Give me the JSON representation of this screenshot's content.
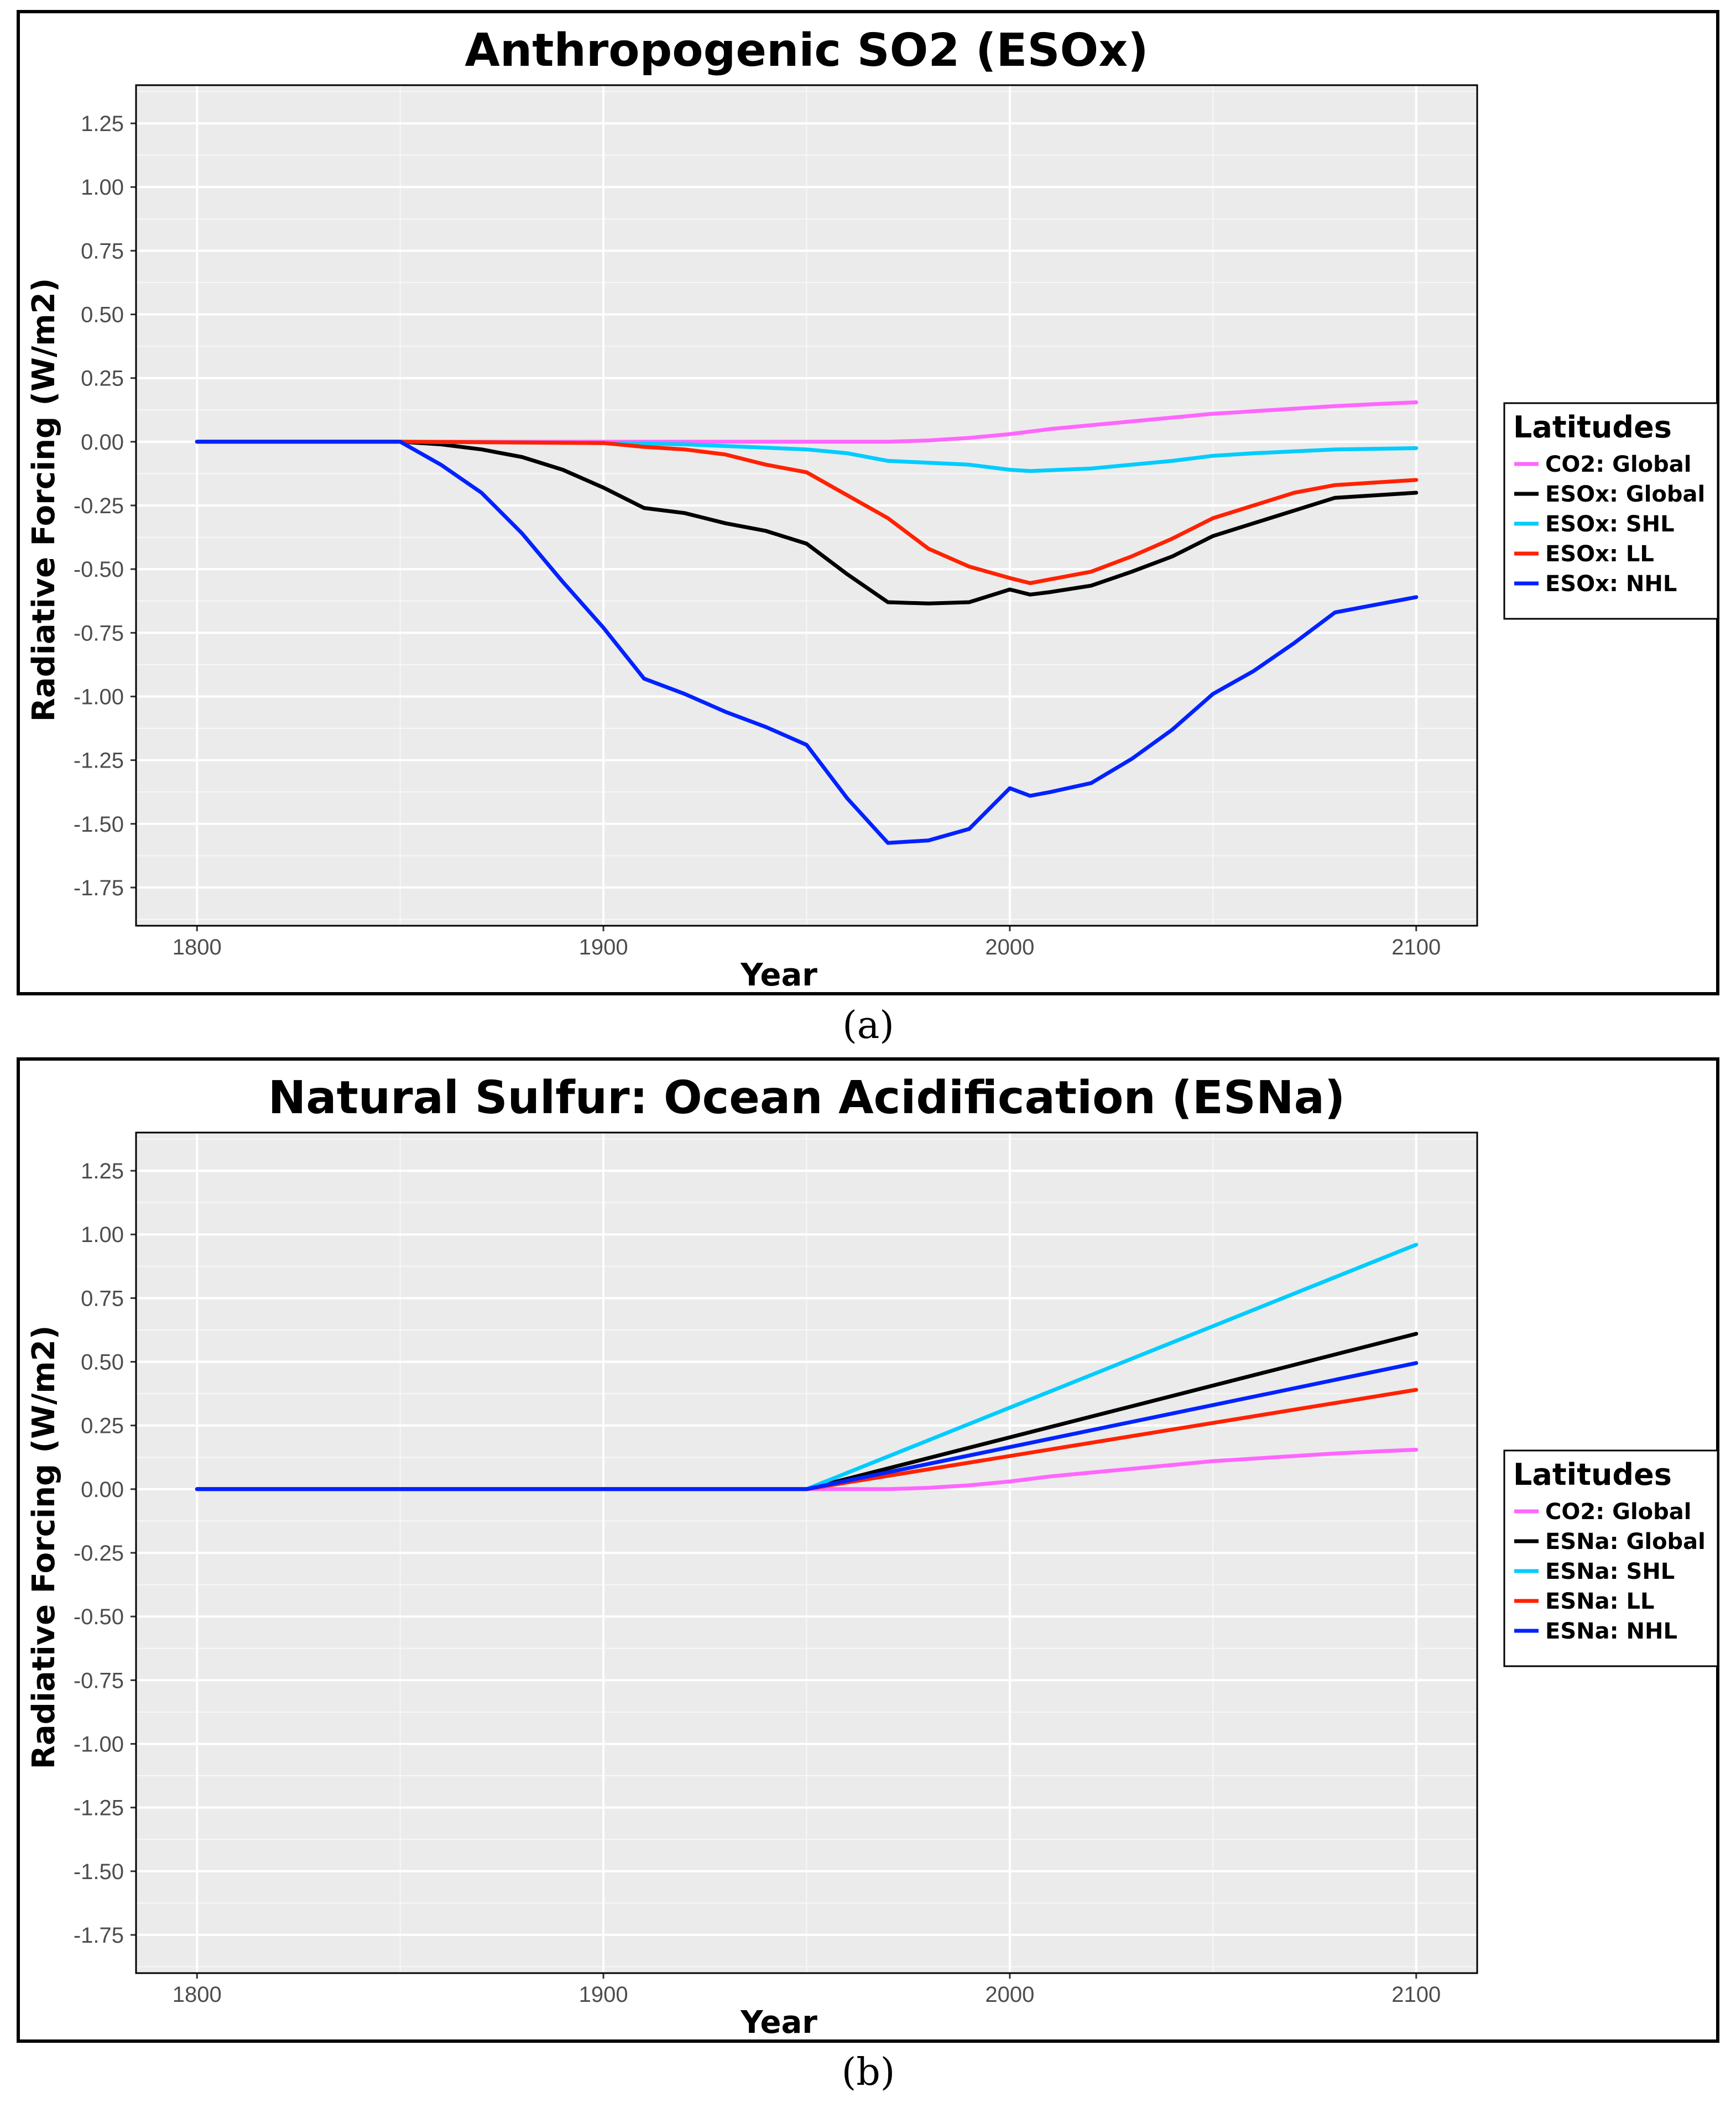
{
  "figure": {
    "captions": [
      "(a)",
      "(b)"
    ]
  },
  "chart_data": [
    {
      "type": "line",
      "panel_label": "a",
      "title": "Anthropogenic SO2 (ESOx)",
      "xlabel": "Year",
      "ylabel": "Radiative Forcing (W/m2)",
      "xlim": [
        1785,
        2115
      ],
      "ylim": [
        -1.9,
        1.4
      ],
      "xticks": [
        1800,
        1900,
        2000,
        2100
      ],
      "xtick_labels": [
        "1800",
        "1900",
        "2000",
        "2100"
      ],
      "yticks": [
        1.25,
        1.0,
        0.75,
        0.5,
        0.25,
        0.0,
        -0.25,
        -0.5,
        -0.75,
        -1.0,
        -1.25,
        -1.5,
        -1.75
      ],
      "ytick_labels": [
        "1.25",
        "1.00",
        "0.75",
        "0.50",
        "0.25",
        "0.00",
        "-0.25",
        "-0.50",
        "-0.75",
        "-1.00",
        "-1.25",
        "-1.50",
        "-1.75"
      ],
      "grid": true,
      "legend": {
        "title": "Latitudes",
        "position": "right"
      },
      "series": [
        {
          "name": "CO2: Global",
          "color": "#ff66ff",
          "x": [
            1800,
            1850,
            1950,
            1970,
            1980,
            1990,
            2000,
            2010,
            2020,
            2030,
            2040,
            2050,
            2060,
            2070,
            2080,
            2090,
            2100
          ],
          "y": [
            0.0,
            0.0,
            0.0,
            0.0,
            0.005,
            0.015,
            0.03,
            0.05,
            0.065,
            0.08,
            0.095,
            0.11,
            0.12,
            0.13,
            0.14,
            0.148,
            0.155
          ]
        },
        {
          "name": "ESOx: Global",
          "color": "#000000",
          "x": [
            1800,
            1850,
            1860,
            1870,
            1880,
            1890,
            1900,
            1910,
            1920,
            1930,
            1940,
            1950,
            1960,
            1970,
            1980,
            1990,
            2000,
            2005,
            2010,
            2020,
            2030,
            2040,
            2050,
            2060,
            2070,
            2080,
            2090,
            2100
          ],
          "y": [
            0.0,
            0.0,
            -0.01,
            -0.03,
            -0.06,
            -0.11,
            -0.18,
            -0.26,
            -0.28,
            -0.32,
            -0.35,
            -0.4,
            -0.52,
            -0.63,
            -0.635,
            -0.63,
            -0.58,
            -0.6,
            -0.59,
            -0.565,
            -0.51,
            -0.45,
            -0.37,
            -0.32,
            -0.27,
            -0.22,
            -0.21,
            -0.2
          ]
        },
        {
          "name": "ESOx: SHL",
          "color": "#00ccff",
          "x": [
            1800,
            1850,
            1900,
            1920,
            1950,
            1960,
            1970,
            1990,
            2000,
            2005,
            2020,
            2040,
            2050,
            2060,
            2080,
            2100
          ],
          "y": [
            0.0,
            0.0,
            -0.005,
            -0.01,
            -0.03,
            -0.045,
            -0.075,
            -0.09,
            -0.11,
            -0.115,
            -0.105,
            -0.075,
            -0.055,
            -0.045,
            -0.03,
            -0.025
          ]
        },
        {
          "name": "ESOx: LL",
          "color": "#ff2200",
          "x": [
            1800,
            1850,
            1900,
            1910,
            1920,
            1930,
            1940,
            1950,
            1960,
            1970,
            1980,
            1990,
            2000,
            2005,
            2010,
            2020,
            2030,
            2040,
            2050,
            2060,
            2070,
            2080,
            2090,
            2100
          ],
          "y": [
            0.0,
            0.0,
            -0.005,
            -0.02,
            -0.03,
            -0.05,
            -0.09,
            -0.12,
            -0.21,
            -0.3,
            -0.42,
            -0.49,
            -0.535,
            -0.555,
            -0.54,
            -0.51,
            -0.45,
            -0.38,
            -0.3,
            -0.25,
            -0.2,
            -0.17,
            -0.16,
            -0.15
          ]
        },
        {
          "name": "ESOx: NHL",
          "color": "#0022ff",
          "x": [
            1800,
            1850,
            1860,
            1870,
            1880,
            1890,
            1900,
            1910,
            1920,
            1930,
            1940,
            1950,
            1960,
            1970,
            1980,
            1990,
            2000,
            2005,
            2010,
            2020,
            2030,
            2040,
            2050,
            2060,
            2070,
            2080,
            2090,
            2100
          ],
          "y": [
            0.0,
            0.0,
            -0.09,
            -0.2,
            -0.36,
            -0.55,
            -0.73,
            -0.93,
            -0.99,
            -1.06,
            -1.12,
            -1.19,
            -1.4,
            -1.575,
            -1.565,
            -1.52,
            -1.36,
            -1.39,
            -1.375,
            -1.34,
            -1.245,
            -1.13,
            -0.99,
            -0.9,
            -0.79,
            -0.67,
            -0.64,
            -0.61
          ]
        }
      ]
    },
    {
      "type": "line",
      "panel_label": "b",
      "title": "Natural Sulfur: Ocean Acidification (ESNa)",
      "xlabel": "Year",
      "ylabel": "Radiative Forcing (W/m2)",
      "xlim": [
        1785,
        2115
      ],
      "ylim": [
        -1.9,
        1.4
      ],
      "xticks": [
        1800,
        1900,
        2000,
        2100
      ],
      "xtick_labels": [
        "1800",
        "1900",
        "2000",
        "2100"
      ],
      "yticks": [
        1.25,
        1.0,
        0.75,
        0.5,
        0.25,
        0.0,
        -0.25,
        -0.5,
        -0.75,
        -1.0,
        -1.25,
        -1.5,
        -1.75
      ],
      "ytick_labels": [
        "1.25",
        "1.00",
        "0.75",
        "0.50",
        "0.25",
        "0.00",
        "-0.25",
        "-0.50",
        "-0.75",
        "-1.00",
        "-1.25",
        "-1.50",
        "-1.75"
      ],
      "grid": true,
      "legend": {
        "title": "Latitudes",
        "position": "right"
      },
      "series": [
        {
          "name": "CO2: Global",
          "color": "#ff66ff",
          "x": [
            1800,
            1950,
            1970,
            1980,
            1990,
            2000,
            2010,
            2020,
            2030,
            2040,
            2050,
            2060,
            2070,
            2080,
            2090,
            2100
          ],
          "y": [
            0.0,
            0.0,
            0.0,
            0.005,
            0.015,
            0.03,
            0.05,
            0.065,
            0.08,
            0.095,
            0.11,
            0.12,
            0.13,
            0.14,
            0.148,
            0.155
          ]
        },
        {
          "name": "ESNa: Global",
          "color": "#000000",
          "x": [
            1800,
            1950,
            2100
          ],
          "y": [
            0.0,
            0.0,
            0.61
          ]
        },
        {
          "name": "ESNa: SHL",
          "color": "#00ccff",
          "x": [
            1800,
            1950,
            2100
          ],
          "y": [
            0.0,
            0.0,
            0.96
          ]
        },
        {
          "name": "ESNa: LL",
          "color": "#ff2200",
          "x": [
            1800,
            1950,
            2100
          ],
          "y": [
            0.0,
            0.0,
            0.39
          ]
        },
        {
          "name": "ESNa: NHL",
          "color": "#0022ff",
          "x": [
            1800,
            1950,
            2100
          ],
          "y": [
            0.0,
            0.0,
            0.495
          ]
        }
      ]
    }
  ]
}
